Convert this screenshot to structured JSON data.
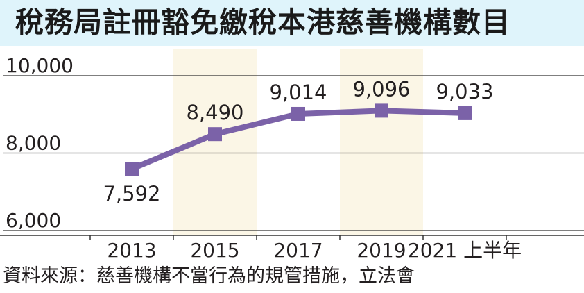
{
  "title": "稅務局註冊豁免繳稅本港慈善機構數目",
  "source": "資料來源：慈善機構不當行為的規管措施，立法會",
  "colors": {
    "title_bg": "#dff4fb",
    "line": "#7b62a8",
    "highlight": "#fbf6e6",
    "axis": "#333333"
  },
  "chart_data": {
    "type": "line",
    "title": "稅務局註冊豁免繳稅本港慈善機構數目",
    "categories": [
      "2013",
      "2015",
      "2017",
      "2019",
      "2021 上半年"
    ],
    "x": [
      "2013",
      "2015",
      "2017",
      "2019",
      "2021"
    ],
    "series": [
      {
        "values": [
          7592,
          8490,
          9014,
          9096,
          9033
        ]
      }
    ],
    "value_labels": [
      "7,592",
      "8,490",
      "9,014",
      "9,096",
      "9,033"
    ],
    "y_ticks": [
      {
        "value": 10000,
        "label": "10,000"
      },
      {
        "value": 8000,
        "label": "8,000"
      },
      {
        "value": 6000,
        "label": "6,000"
      }
    ],
    "ylim": [
      6000,
      10000
    ],
    "highlighted_columns": [
      "2015",
      "2019"
    ],
    "grid": true,
    "legend": "none"
  }
}
